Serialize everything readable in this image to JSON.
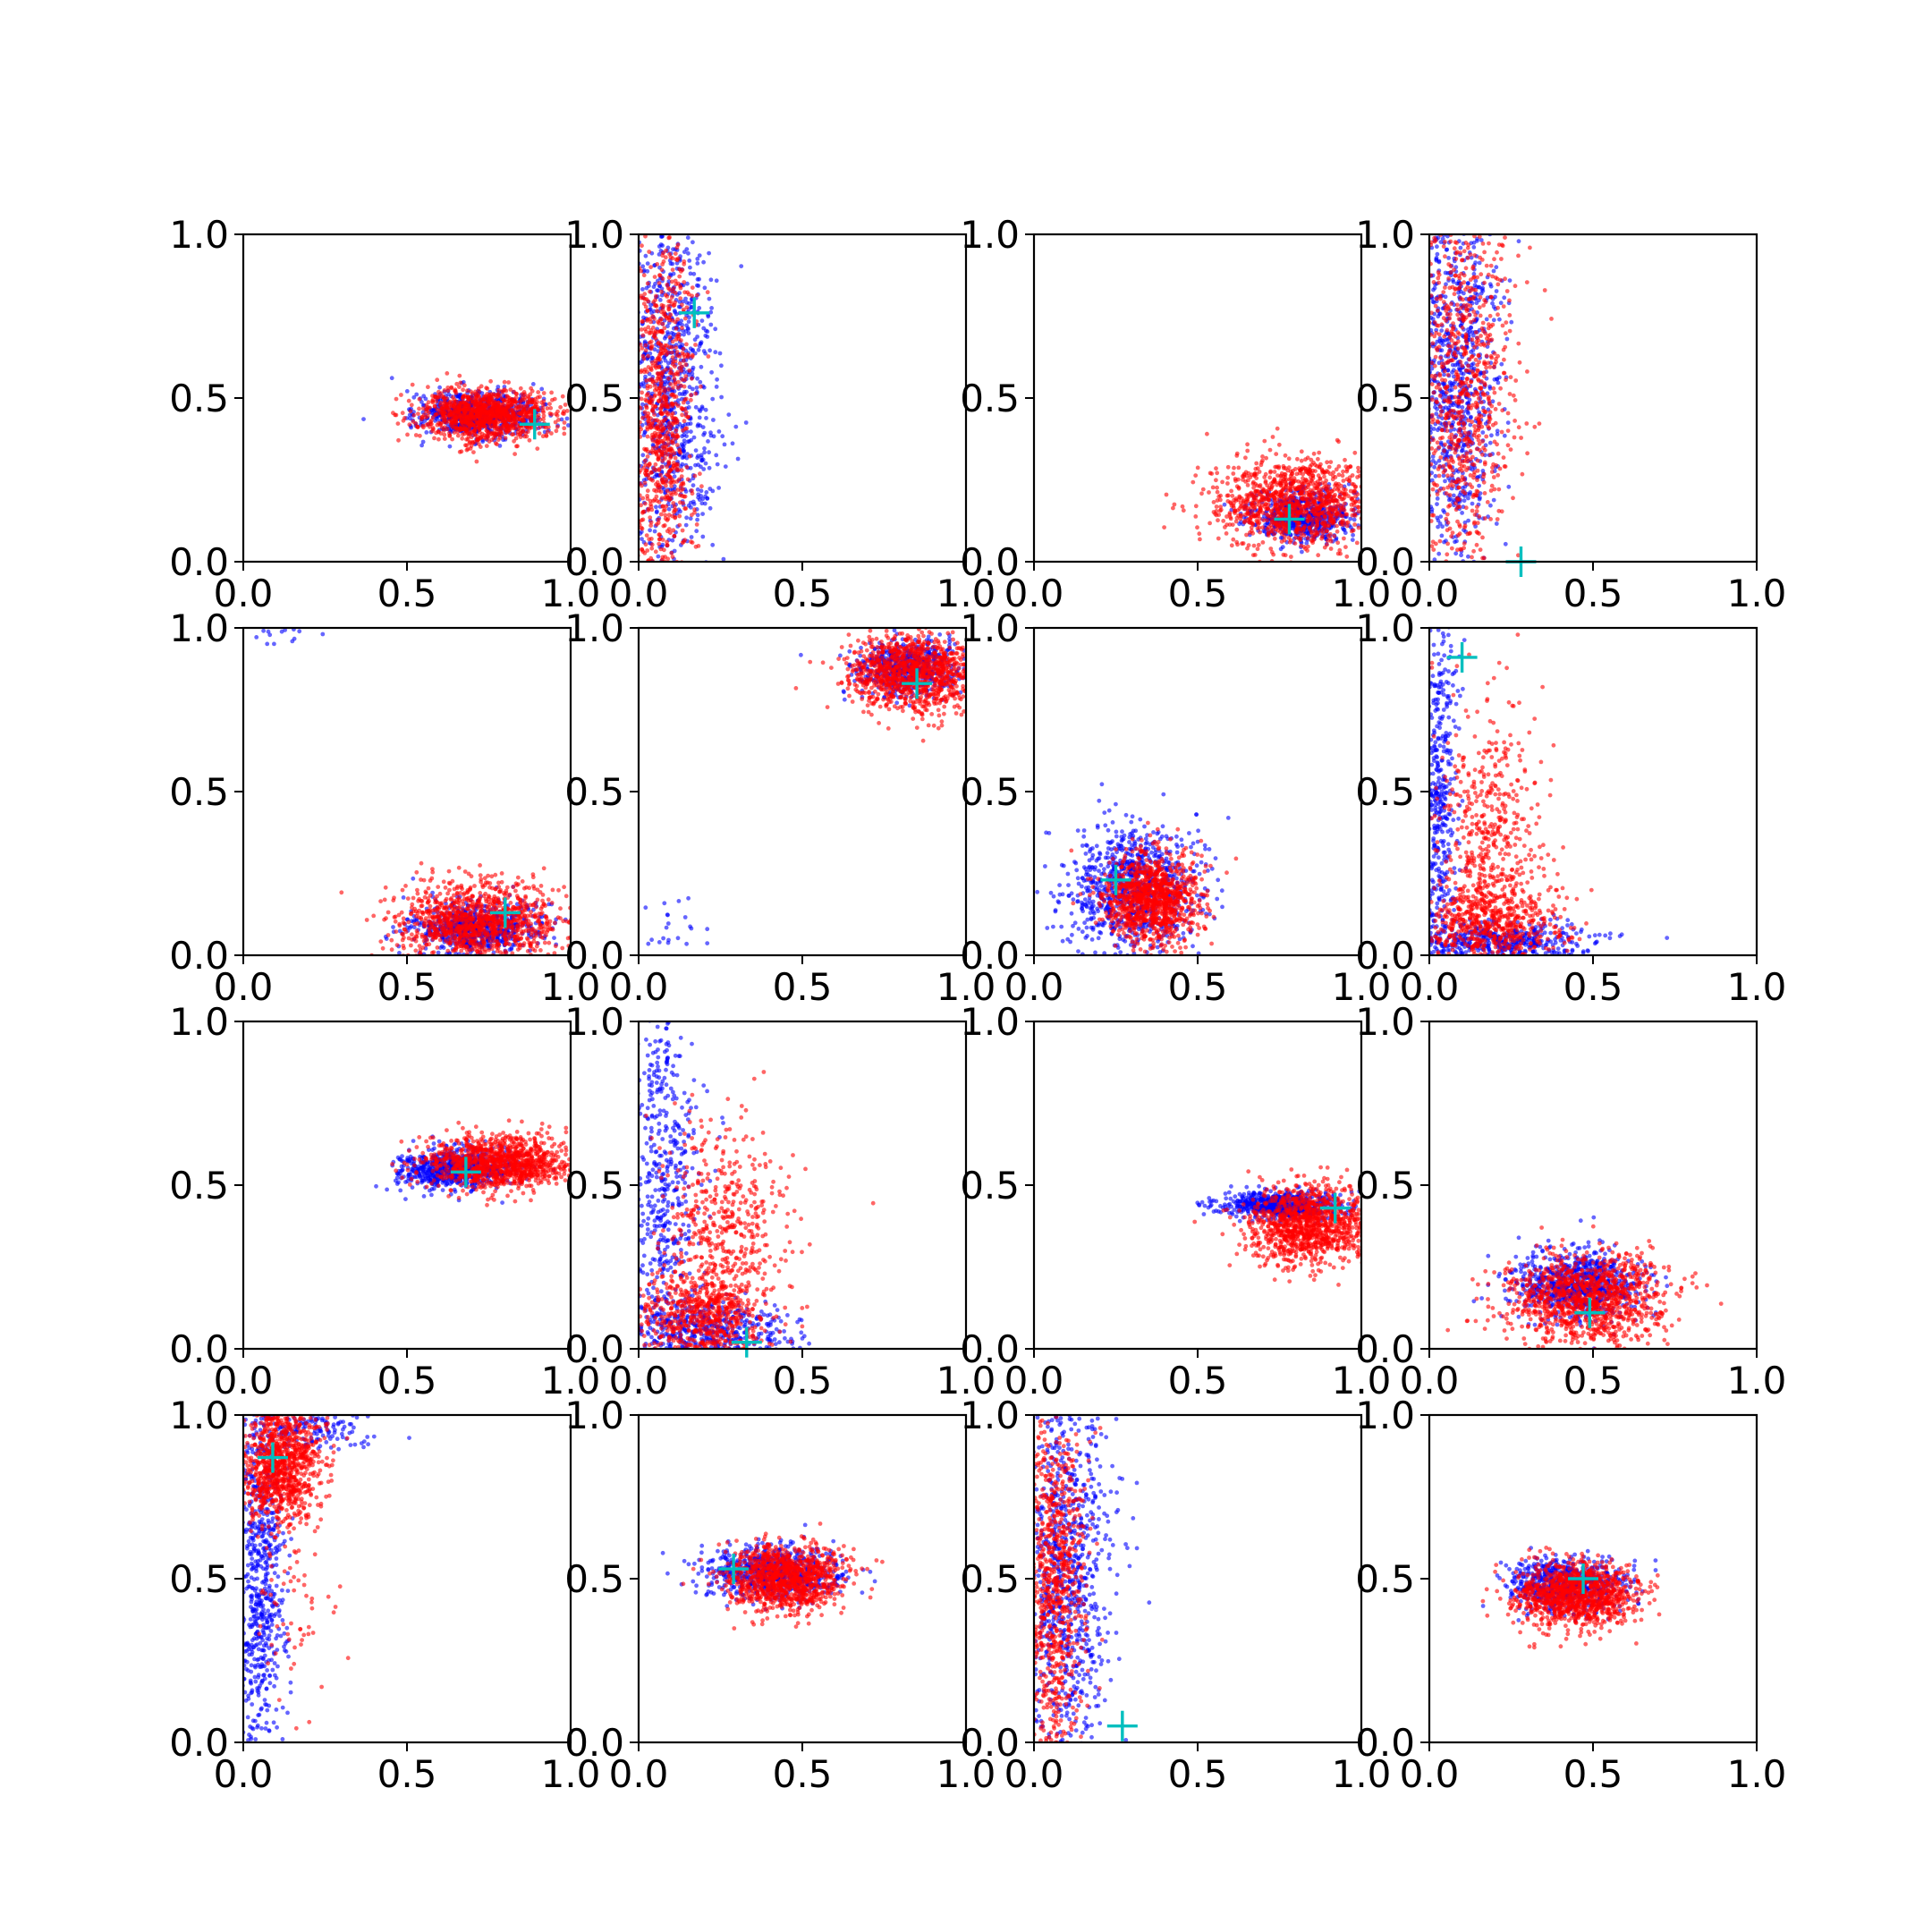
{
  "figure": {
    "layout": "4x4 grid of scatter subplots",
    "colors": {
      "series_a": "#0000ff",
      "series_b": "#ff0000",
      "marker": "#00bfbf",
      "axes": "#000000",
      "background": "#ffffff"
    }
  },
  "chart_data": [
    {
      "type": "scatter",
      "xlim": [
        0,
        1
      ],
      "ylim": [
        0,
        1
      ],
      "xticks": [
        "0.0",
        "0.5",
        "1.0"
      ],
      "yticks": [
        "0.0",
        "0.5",
        "1.0"
      ],
      "grid": false,
      "marker": {
        "x": 0.89,
        "y": 0.42
      },
      "series": [
        {
          "color": "#0000ff",
          "clusters": [
            {
              "cx": 0.72,
              "cy": 0.45,
              "sx": 0.09,
              "sy": 0.035,
              "n": 700
            }
          ]
        },
        {
          "color": "#ff0000",
          "clusters": [
            {
              "cx": 0.74,
              "cy": 0.45,
              "sx": 0.1,
              "sy": 0.04,
              "n": 1100
            }
          ]
        }
      ]
    },
    {
      "type": "scatter",
      "xlim": [
        0,
        1
      ],
      "ylim": [
        0,
        1
      ],
      "xticks": [
        "0.0",
        "0.5",
        "1.0"
      ],
      "yticks": [
        "0.0",
        "0.5",
        "1.0"
      ],
      "grid": false,
      "marker": {
        "x": 0.17,
        "y": 0.76
      },
      "series": [
        {
          "color": "#0000ff",
          "clusters": [
            {
              "cx": 0.1,
              "cy": 0.5,
              "sx": 0.07,
              "sy": 0.3,
              "n": 900
            }
          ]
        },
        {
          "color": "#ff0000",
          "clusters": [
            {
              "cx": 0.07,
              "cy": 0.45,
              "sx": 0.05,
              "sy": 0.3,
              "n": 900
            }
          ]
        }
      ]
    },
    {
      "type": "scatter",
      "xlim": [
        0,
        1
      ],
      "ylim": [
        0,
        1
      ],
      "xticks": [
        "0.0",
        "0.5",
        "1.0"
      ],
      "yticks": [
        "0.0",
        "0.5",
        "1.0"
      ],
      "grid": false,
      "marker": {
        "x": 0.78,
        "y": 0.13
      },
      "series": [
        {
          "color": "#0000ff",
          "clusters": [
            {
              "cx": 0.82,
              "cy": 0.14,
              "sx": 0.08,
              "sy": 0.04,
              "n": 600
            }
          ]
        },
        {
          "color": "#ff0000",
          "clusters": [
            {
              "cx": 0.8,
              "cy": 0.18,
              "sx": 0.12,
              "sy": 0.07,
              "n": 1100
            }
          ]
        }
      ]
    },
    {
      "type": "scatter",
      "xlim": [
        0,
        1
      ],
      "ylim": [
        0,
        1
      ],
      "xticks": [
        "0.0",
        "0.5",
        "1.0"
      ],
      "yticks": [
        "0.0",
        "0.5",
        "1.0"
      ],
      "grid": false,
      "marker": {
        "x": 0.28,
        "y": 0.0
      },
      "series": [
        {
          "color": "#0000ff",
          "clusters": [
            {
              "cx": 0.08,
              "cy": 0.55,
              "sx": 0.07,
              "sy": 0.3,
              "n": 900
            }
          ]
        },
        {
          "color": "#ff0000",
          "clusters": [
            {
              "cx": 0.1,
              "cy": 0.55,
              "sx": 0.08,
              "sy": 0.3,
              "n": 900
            }
          ]
        }
      ]
    },
    {
      "type": "scatter",
      "xlim": [
        0,
        1
      ],
      "ylim": [
        0,
        1
      ],
      "xticks": [
        "0.0",
        "0.5",
        "1.0"
      ],
      "yticks": [
        "0.0",
        "0.5",
        "1.0"
      ],
      "grid": false,
      "marker": {
        "x": 0.8,
        "y": 0.13
      },
      "series": [
        {
          "color": "#0000ff",
          "clusters": [
            {
              "cx": 0.7,
              "cy": 0.08,
              "sx": 0.1,
              "sy": 0.04,
              "n": 700
            },
            {
              "cx": 0.12,
              "cy": 0.97,
              "sx": 0.07,
              "sy": 0.02,
              "n": 14
            }
          ]
        },
        {
          "color": "#ff0000",
          "clusters": [
            {
              "cx": 0.72,
              "cy": 0.1,
              "sx": 0.12,
              "sy": 0.06,
              "n": 1100
            }
          ]
        }
      ]
    },
    {
      "type": "scatter",
      "xlim": [
        0,
        1
      ],
      "ylim": [
        0,
        1
      ],
      "xticks": [
        "0.0",
        "0.5",
        "1.0"
      ],
      "yticks": [
        "0.0",
        "0.5",
        "1.0"
      ],
      "grid": false,
      "marker": {
        "x": 0.85,
        "y": 0.83
      },
      "series": [
        {
          "color": "#0000ff",
          "clusters": [
            {
              "cx": 0.82,
              "cy": 0.88,
              "sx": 0.08,
              "sy": 0.04,
              "n": 600
            },
            {
              "cx": 0.12,
              "cy": 0.08,
              "sx": 0.05,
              "sy": 0.05,
              "n": 22
            }
          ]
        },
        {
          "color": "#ff0000",
          "clusters": [
            {
              "cx": 0.84,
              "cy": 0.86,
              "sx": 0.1,
              "sy": 0.06,
              "n": 1100
            }
          ]
        }
      ]
    },
    {
      "type": "scatter",
      "xlim": [
        0,
        1
      ],
      "ylim": [
        0,
        1
      ],
      "xticks": [
        "0.0",
        "0.5",
        "1.0"
      ],
      "yticks": [
        "0.0",
        "0.5",
        "1.0"
      ],
      "grid": false,
      "marker": {
        "x": 0.25,
        "y": 0.23
      },
      "series": [
        {
          "color": "#0000ff",
          "clusters": [
            {
              "cx": 0.3,
              "cy": 0.2,
              "sx": 0.1,
              "sy": 0.1,
              "n": 900
            }
          ]
        },
        {
          "color": "#ff0000",
          "clusters": [
            {
              "cx": 0.36,
              "cy": 0.17,
              "sx": 0.07,
              "sy": 0.07,
              "n": 1100
            }
          ]
        }
      ]
    },
    {
      "type": "scatter",
      "xlim": [
        0,
        1
      ],
      "ylim": [
        0,
        1
      ],
      "xticks": [
        "0.0",
        "0.5",
        "1.0"
      ],
      "yticks": [
        "0.0",
        "0.5",
        "1.0"
      ],
      "grid": false,
      "marker": {
        "x": 0.1,
        "y": 0.91
      },
      "series": [
        {
          "color": "#0000ff",
          "clusters": [
            {
              "cx": 0.03,
              "cy": 0.5,
              "sx": 0.03,
              "sy": 0.3,
              "n": 500
            },
            {
              "cx": 0.2,
              "cy": 0.04,
              "sx": 0.14,
              "sy": 0.03,
              "n": 500
            }
          ]
        },
        {
          "color": "#ff0000",
          "clusters": [
            {
              "cx": 0.18,
              "cy": 0.35,
              "sx": 0.08,
              "sy": 0.2,
              "n": 500
            },
            {
              "cx": 0.18,
              "cy": 0.1,
              "sx": 0.12,
              "sy": 0.07,
              "n": 600
            }
          ]
        }
      ]
    },
    {
      "type": "scatter",
      "xlim": [
        0,
        1
      ],
      "ylim": [
        0,
        1
      ],
      "xticks": [
        "0.0",
        "0.5",
        "1.0"
      ],
      "yticks": [
        "0.0",
        "0.5",
        "1.0"
      ],
      "grid": false,
      "marker": {
        "x": 0.68,
        "y": 0.54
      },
      "series": [
        {
          "color": "#0000ff",
          "clusters": [
            {
              "cx": 0.65,
              "cy": 0.55,
              "sx": 0.09,
              "sy": 0.03,
              "n": 700
            }
          ]
        },
        {
          "color": "#ff0000",
          "clusters": [
            {
              "cx": 0.78,
              "cy": 0.57,
              "sx": 0.11,
              "sy": 0.04,
              "n": 1100
            }
          ]
        }
      ]
    },
    {
      "type": "scatter",
      "xlim": [
        0,
        1
      ],
      "ylim": [
        0,
        1
      ],
      "xticks": [
        "0.0",
        "0.5",
        "1.0"
      ],
      "yticks": [
        "0.0",
        "0.5",
        "1.0"
      ],
      "grid": false,
      "marker": {
        "x": 0.33,
        "y": 0.02
      },
      "series": [
        {
          "color": "#0000ff",
          "clusters": [
            {
              "cx": 0.08,
              "cy": 0.55,
              "sx": 0.05,
              "sy": 0.3,
              "n": 500
            },
            {
              "cx": 0.22,
              "cy": 0.05,
              "sx": 0.12,
              "sy": 0.05,
              "n": 500
            }
          ]
        },
        {
          "color": "#ff0000",
          "clusters": [
            {
              "cx": 0.25,
              "cy": 0.35,
              "sx": 0.1,
              "sy": 0.18,
              "n": 500
            },
            {
              "cx": 0.2,
              "cy": 0.1,
              "sx": 0.1,
              "sy": 0.07,
              "n": 600
            }
          ]
        }
      ]
    },
    {
      "type": "scatter",
      "xlim": [
        0,
        1
      ],
      "ylim": [
        0,
        1
      ],
      "xticks": [
        "0.0",
        "0.5",
        "1.0"
      ],
      "yticks": [
        "0.0",
        "0.5",
        "1.0"
      ],
      "grid": false,
      "marker": {
        "x": 0.92,
        "y": 0.43
      },
      "series": [
        {
          "color": "#0000ff",
          "clusters": [
            {
              "cx": 0.75,
              "cy": 0.44,
              "sx": 0.09,
              "sy": 0.02,
              "n": 700
            }
          ]
        },
        {
          "color": "#ff0000",
          "clusters": [
            {
              "cx": 0.84,
              "cy": 0.38,
              "sx": 0.09,
              "sy": 0.06,
              "n": 1100
            }
          ]
        }
      ]
    },
    {
      "type": "scatter",
      "xlim": [
        0,
        1
      ],
      "ylim": [
        0,
        1
      ],
      "xticks": [
        "0.0",
        "0.5",
        "1.0"
      ],
      "yticks": [
        "0.0",
        "0.5",
        "1.0"
      ],
      "grid": false,
      "marker": {
        "x": 0.49,
        "y": 0.11
      },
      "series": [
        {
          "color": "#0000ff",
          "clusters": [
            {
              "cx": 0.45,
              "cy": 0.2,
              "sx": 0.1,
              "sy": 0.05,
              "n": 800
            }
          ]
        },
        {
          "color": "#ff0000",
          "clusters": [
            {
              "cx": 0.48,
              "cy": 0.15,
              "sx": 0.13,
              "sy": 0.07,
              "n": 1100
            }
          ]
        }
      ]
    },
    {
      "type": "scatter",
      "xlim": [
        0,
        1
      ],
      "ylim": [
        0,
        1
      ],
      "xticks": [
        "0.0",
        "0.5",
        "1.0"
      ],
      "yticks": [
        "0.0",
        "0.5",
        "1.0"
      ],
      "grid": false,
      "marker": {
        "x": 0.09,
        "y": 0.87
      },
      "series": [
        {
          "color": "#0000ff",
          "clusters": [
            {
              "cx": 0.05,
              "cy": 0.5,
              "sx": 0.04,
              "sy": 0.3,
              "n": 700
            },
            {
              "cx": 0.2,
              "cy": 0.95,
              "sx": 0.1,
              "sy": 0.03,
              "n": 150
            }
          ]
        },
        {
          "color": "#ff0000",
          "clusters": [
            {
              "cx": 0.12,
              "cy": 0.85,
              "sx": 0.06,
              "sy": 0.1,
              "n": 1000
            },
            {
              "cx": 0.15,
              "cy": 0.4,
              "sx": 0.08,
              "sy": 0.15,
              "n": 60
            }
          ]
        }
      ]
    },
    {
      "type": "scatter",
      "xlim": [
        0,
        1
      ],
      "ylim": [
        0,
        1
      ],
      "xticks": [
        "0.0",
        "0.5",
        "1.0"
      ],
      "yticks": [
        "0.0",
        "0.5",
        "1.0"
      ],
      "grid": false,
      "marker": {
        "x": 0.29,
        "y": 0.53
      },
      "series": [
        {
          "color": "#0000ff",
          "clusters": [
            {
              "cx": 0.4,
              "cy": 0.52,
              "sx": 0.1,
              "sy": 0.04,
              "n": 700
            }
          ]
        },
        {
          "color": "#ff0000",
          "clusters": [
            {
              "cx": 0.45,
              "cy": 0.5,
              "sx": 0.09,
              "sy": 0.05,
              "n": 1100
            }
          ]
        }
      ]
    },
    {
      "type": "scatter",
      "xlim": [
        0,
        1
      ],
      "ylim": [
        0,
        1
      ],
      "xticks": [
        "0.0",
        "0.5",
        "1.0"
      ],
      "yticks": [
        "0.0",
        "0.5",
        "1.0"
      ],
      "grid": false,
      "marker": {
        "x": 0.27,
        "y": 0.05
      },
      "series": [
        {
          "color": "#0000ff",
          "clusters": [
            {
              "cx": 0.1,
              "cy": 0.5,
              "sx": 0.07,
              "sy": 0.3,
              "n": 900
            }
          ]
        },
        {
          "color": "#ff0000",
          "clusters": [
            {
              "cx": 0.06,
              "cy": 0.5,
              "sx": 0.05,
              "sy": 0.3,
              "n": 900
            }
          ]
        }
      ]
    },
    {
      "type": "scatter",
      "xlim": [
        0,
        1
      ],
      "ylim": [
        0,
        1
      ],
      "xticks": [
        "0.0",
        "0.5",
        "1.0"
      ],
      "yticks": [
        "0.0",
        "0.5",
        "1.0"
      ],
      "grid": false,
      "marker": {
        "x": 0.47,
        "y": 0.5
      },
      "series": [
        {
          "color": "#0000ff",
          "clusters": [
            {
              "cx": 0.42,
              "cy": 0.48,
              "sx": 0.09,
              "sy": 0.04,
              "n": 700
            }
          ]
        },
        {
          "color": "#ff0000",
          "clusters": [
            {
              "cx": 0.45,
              "cy": 0.45,
              "sx": 0.09,
              "sy": 0.05,
              "n": 1100
            }
          ]
        }
      ]
    }
  ]
}
